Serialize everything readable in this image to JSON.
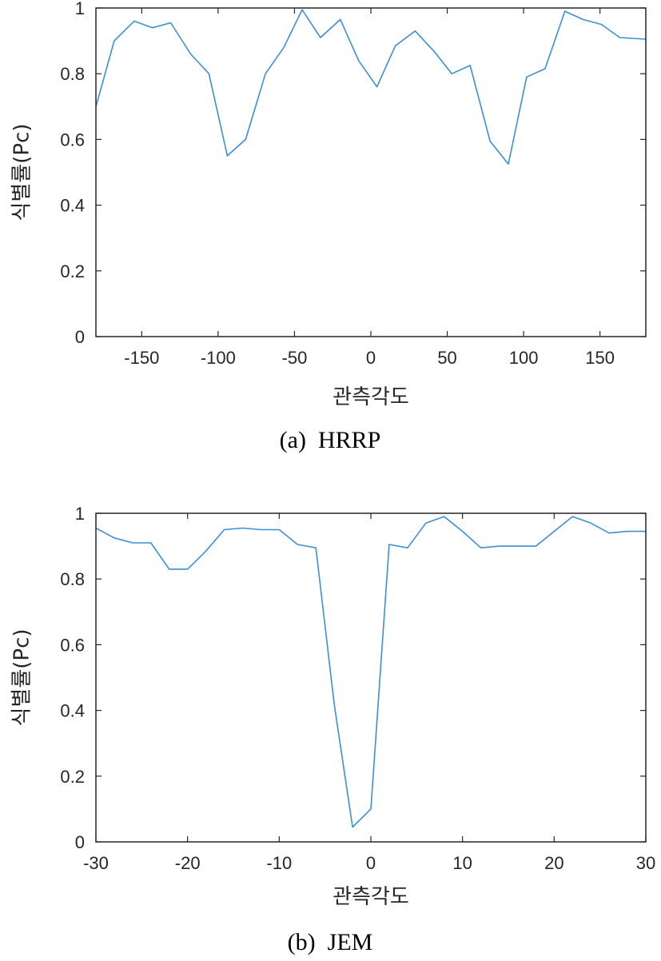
{
  "chart_data": [
    {
      "type": "line",
      "caption": "(a)  HRRP",
      "xlabel": "관측각도",
      "ylabel": "식별률(Pc)",
      "xlim": [
        -180,
        180
      ],
      "ylim": [
        0,
        1
      ],
      "xticks": [
        -150,
        -100,
        -50,
        0,
        50,
        100,
        150
      ],
      "xtick_labels": [
        "-150",
        "-100",
        "-50",
        "0",
        "50",
        "100",
        "150"
      ],
      "yticks": [
        0,
        0.2,
        0.4,
        0.6,
        0.8,
        1
      ],
      "ytick_labels": [
        "0",
        "0.2",
        "0.4",
        "0.6",
        "0.8",
        "1"
      ],
      "grid": false,
      "color": "#3d8fd1",
      "x": [
        -180,
        -168,
        -155,
        -143,
        -131,
        -118,
        -106,
        -94,
        -82,
        -69,
        -57,
        -45,
        -33,
        -20,
        -8,
        4,
        16,
        29,
        41,
        53,
        65,
        78,
        90,
        102,
        114,
        127,
        139,
        151,
        163,
        180
      ],
      "y": [
        0.7,
        0.9,
        0.96,
        0.94,
        0.955,
        0.86,
        0.8,
        0.55,
        0.6,
        0.8,
        0.88,
        0.995,
        0.91,
        0.965,
        0.84,
        0.76,
        0.885,
        0.93,
        0.87,
        0.8,
        0.825,
        0.595,
        0.525,
        0.79,
        0.815,
        0.99,
        0.965,
        0.95,
        0.91,
        0.905
      ]
    },
    {
      "type": "line",
      "caption": "(b)  JEM",
      "xlabel": "관측각도",
      "ylabel": "식별률(Pc)",
      "xlim": [
        -30,
        30
      ],
      "ylim": [
        0,
        1
      ],
      "xticks": [
        -30,
        -20,
        -10,
        0,
        10,
        20,
        30
      ],
      "xtick_labels": [
        "-30",
        "-20",
        "-10",
        "0",
        "10",
        "20",
        "30"
      ],
      "yticks": [
        0,
        0.2,
        0.4,
        0.6,
        0.8,
        1
      ],
      "ytick_labels": [
        "0",
        "0.2",
        "0.4",
        "0.6",
        "0.8",
        "1"
      ],
      "grid": false,
      "color": "#3d8fd1",
      "x": [
        -30,
        -28,
        -26,
        -24,
        -22,
        -20,
        -18,
        -16,
        -14,
        -12,
        -10,
        -8,
        -6,
        -4,
        -2,
        0,
        2,
        4,
        6,
        8,
        10,
        12,
        14,
        16,
        18,
        20,
        22,
        24,
        26,
        28,
        30
      ],
      "y": [
        0.955,
        0.925,
        0.91,
        0.91,
        0.83,
        0.83,
        0.885,
        0.95,
        0.955,
        0.95,
        0.95,
        0.905,
        0.895,
        0.42,
        0.045,
        0.1,
        0.905,
        0.895,
        0.97,
        0.99,
        0.945,
        0.895,
        0.9,
        0.9,
        0.9,
        0.945,
        0.99,
        0.97,
        0.94,
        0.945,
        0.945
      ]
    }
  ]
}
